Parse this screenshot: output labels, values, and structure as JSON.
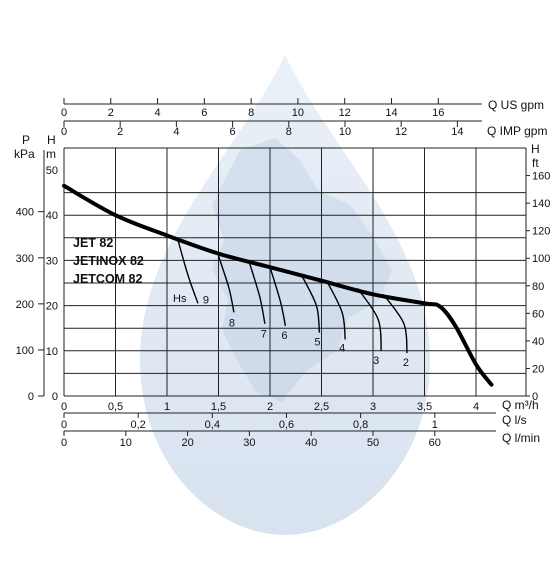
{
  "chart_data": {
    "type": "line",
    "models": [
      "JET 82",
      "JETINOX 82",
      "JETCOM 82"
    ],
    "colors": {
      "main_curve": "#000000",
      "suction_curves": "#000000",
      "grid": "#222222",
      "watermark": "#c3d2e6"
    },
    "grid": true,
    "watermark": "drop-icon",
    "axes": {
      "bottom_primary": {
        "label": "Q m³/h",
        "range": [
          0,
          4.2
        ],
        "ticks": [
          "0",
          "0,5",
          "1",
          "1,5",
          "2",
          "2,5",
          "3",
          "3,5",
          "4"
        ]
      },
      "bottom_ls": {
        "label": "Q l/s",
        "ticks": [
          "0",
          "0,2",
          "0,4",
          "0,6",
          "0,8",
          "1"
        ]
      },
      "bottom_lmin": {
        "label": "Q l/min",
        "ticks": [
          "0",
          "10",
          "20",
          "30",
          "40",
          "50",
          "60"
        ]
      },
      "top_us": {
        "label": "Q US gpm",
        "ticks": [
          "0",
          "2",
          "4",
          "6",
          "8",
          "10",
          "12",
          "14",
          "16"
        ]
      },
      "top_imp": {
        "label": "Q IMP gpm",
        "ticks": [
          "0",
          "2",
          "4",
          "6",
          "8",
          "10",
          "12",
          "14"
        ]
      },
      "left_m": {
        "label": "H",
        "unit": "m",
        "range": [
          0,
          50
        ],
        "ticks": [
          "0",
          "10",
          "20",
          "30",
          "40",
          "50"
        ]
      },
      "left_kpa": {
        "label": "P",
        "unit": "kPa",
        "ticks": [
          "0",
          "100",
          "200",
          "300",
          "400"
        ]
      },
      "right_ft": {
        "label": "H",
        "unit": "ft",
        "ticks": [
          "0",
          "20",
          "40",
          "60",
          "80",
          "100",
          "120",
          "140",
          "160"
        ]
      }
    },
    "main_curve": {
      "x": [
        0,
        0.5,
        1,
        1.5,
        2,
        2.5,
        3,
        3.5,
        3.65,
        3.8,
        4.0,
        4.15
      ],
      "y": [
        46.5,
        40,
        35.5,
        31.5,
        28.5,
        25.5,
        22.5,
        20.5,
        19.8,
        15.5,
        7,
        2.5
      ]
    },
    "suction_label_prefix": "Hs",
    "suction_curves": [
      {
        "label": "9",
        "x": [
          1.1,
          1.2,
          1.3
        ],
        "y": [
          35,
          27,
          20.5
        ]
      },
      {
        "label": "8",
        "x": [
          1.5,
          1.6,
          1.65
        ],
        "y": [
          31,
          24,
          18.5
        ]
      },
      {
        "label": "7",
        "x": [
          1.8,
          1.9,
          1.95
        ],
        "y": [
          29.5,
          22,
          16
        ]
      },
      {
        "label": "6",
        "x": [
          2.0,
          2.1,
          2.15
        ],
        "y": [
          28.5,
          21,
          15.5
        ]
      },
      {
        "label": "5",
        "x": [
          2.3,
          2.45,
          2.48
        ],
        "y": [
          27,
          20,
          14
        ]
      },
      {
        "label": "4",
        "x": [
          2.55,
          2.7,
          2.73
        ],
        "y": [
          25.5,
          18.5,
          12.5
        ]
      },
      {
        "label": "3",
        "x": [
          2.85,
          3.05,
          3.08
        ],
        "y": [
          23.8,
          17,
          10
        ]
      },
      {
        "label": "2",
        "x": [
          3.1,
          3.3,
          3.33
        ],
        "y": [
          22.5,
          16,
          9.5
        ]
      }
    ]
  }
}
